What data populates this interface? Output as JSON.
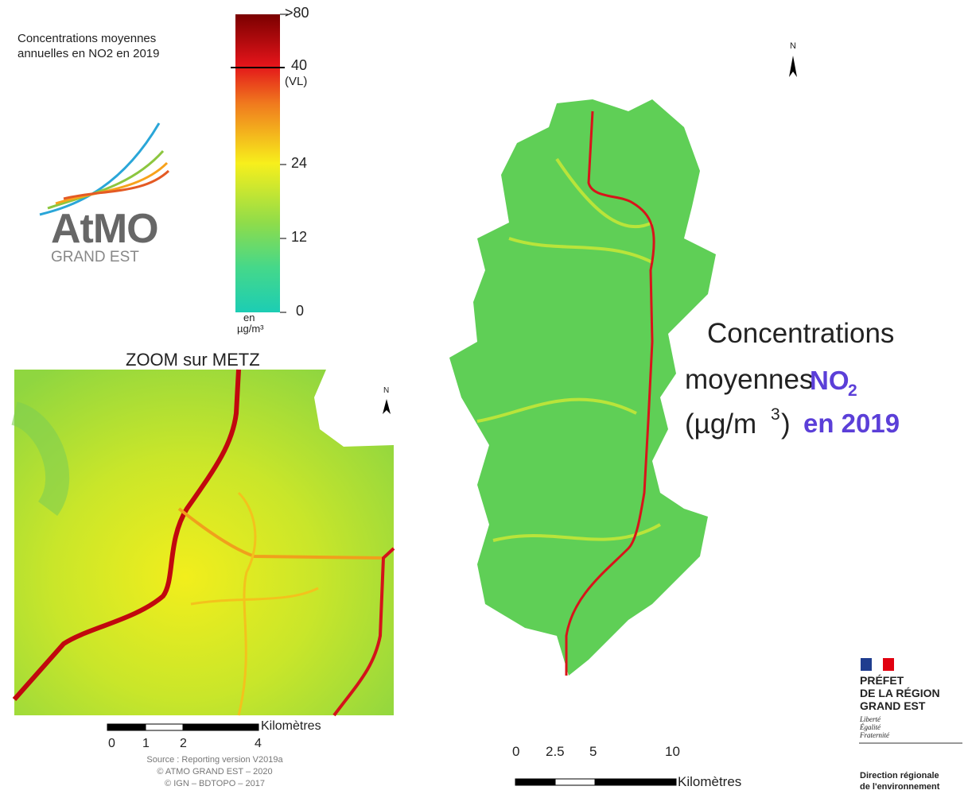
{
  "legend": {
    "title": [
      "Concentrations moyennes",
      "annuelles en NO2 en 2019"
    ],
    "labels": [
      ">80",
      "40",
      "(VL)",
      "24",
      "12",
      "0"
    ],
    "unit": [
      "en",
      "µg/m³"
    ]
  },
  "logo": {
    "name": "AtMO",
    "region": "GRAND EST"
  },
  "zoom": {
    "title": "ZOOM sur METZ",
    "north": "N",
    "scale": {
      "ticks": [
        "0",
        "1",
        "2",
        "4"
      ],
      "unit": "Kilomètres"
    },
    "source": [
      "Source : Reporting version V2019a",
      "© ATMO GRAND EST – 2020",
      "© IGN – BDTOPO – 2017"
    ]
  },
  "main": {
    "north": "N",
    "title": {
      "line1": "Concentrations",
      "line2": "moyennes",
      "pollutant": "NO",
      "pollutant_sub": "2",
      "unit": "(µg/m",
      "unit_sup": "3",
      "unit_close": ")",
      "year": "en 2019"
    },
    "scale": {
      "ticks": [
        "0",
        "2.5",
        "5",
        "10"
      ],
      "unit": "Kilomètres"
    }
  },
  "prefet": {
    "lines": [
      "PRÉFET",
      "DE LA RÉGION",
      "GRAND EST"
    ],
    "motto": [
      "Liberté",
      "Égalité",
      "Fraternité"
    ],
    "direction": [
      "Direction régionale",
      "de l'environnement"
    ]
  }
}
